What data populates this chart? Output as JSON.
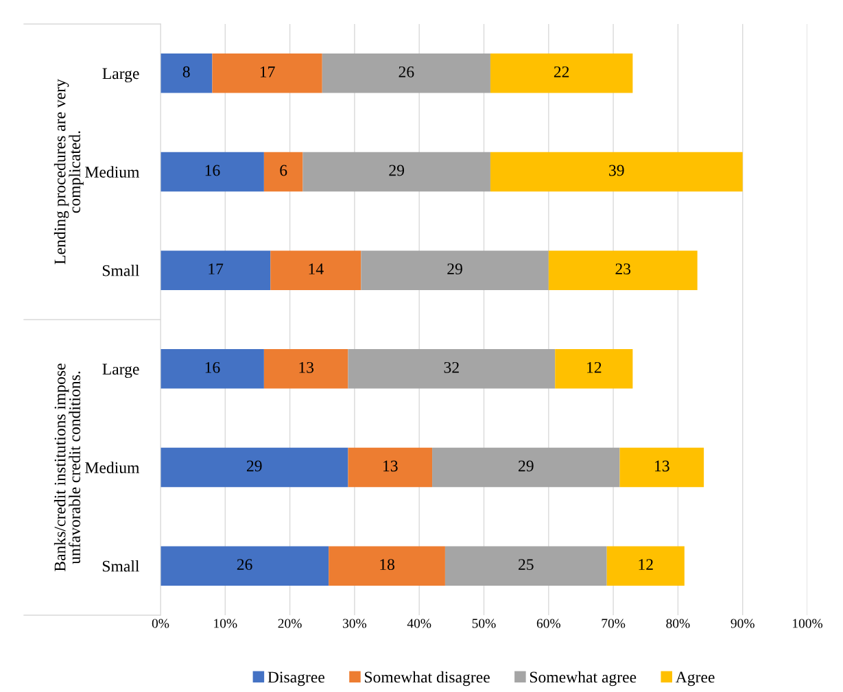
{
  "chart_data": {
    "type": "bar",
    "orientation": "horizontal",
    "stacked": true,
    "categories": [
      "Large",
      "Medium",
      "Small",
      "Large",
      "Medium",
      "Small"
    ],
    "series": [
      {
        "name": "Disagree",
        "color": "#4472c4",
        "values": [
          8,
          16,
          17,
          16,
          29,
          26
        ]
      },
      {
        "name": "Somewhat disagree",
        "color": "#ed7d31",
        "values": [
          17,
          6,
          14,
          13,
          13,
          18
        ]
      },
      {
        "name": "Somewhat agree",
        "color": "#a5a5a5",
        "values": [
          26,
          29,
          29,
          32,
          29,
          25
        ]
      },
      {
        "name": "Agree",
        "color": "#ffc000",
        "values": [
          22,
          39,
          23,
          12,
          13,
          12
        ]
      }
    ],
    "annotations": [
      "Lending procedures are very\ncomplicated.",
      "Banks/credit institutions impose\nunfavorable credit conditions."
    ],
    "xlim": [
      0,
      100
    ],
    "xticks": [
      {
        "value": 0,
        "label": "0%"
      },
      {
        "value": 10,
        "label": "10%"
      },
      {
        "value": 20,
        "label": "20%"
      },
      {
        "value": 30,
        "label": "30%"
      },
      {
        "value": 40,
        "label": "40%"
      },
      {
        "value": 50,
        "label": "50%"
      },
      {
        "value": 60,
        "label": "60%"
      },
      {
        "value": 70,
        "label": "70%"
      },
      {
        "value": 80,
        "label": "80%"
      },
      {
        "value": 90,
        "label": "90%"
      },
      {
        "value": 100,
        "label": "100%"
      }
    ],
    "grid": "x",
    "legend": "bottom",
    "data_labels": true
  }
}
